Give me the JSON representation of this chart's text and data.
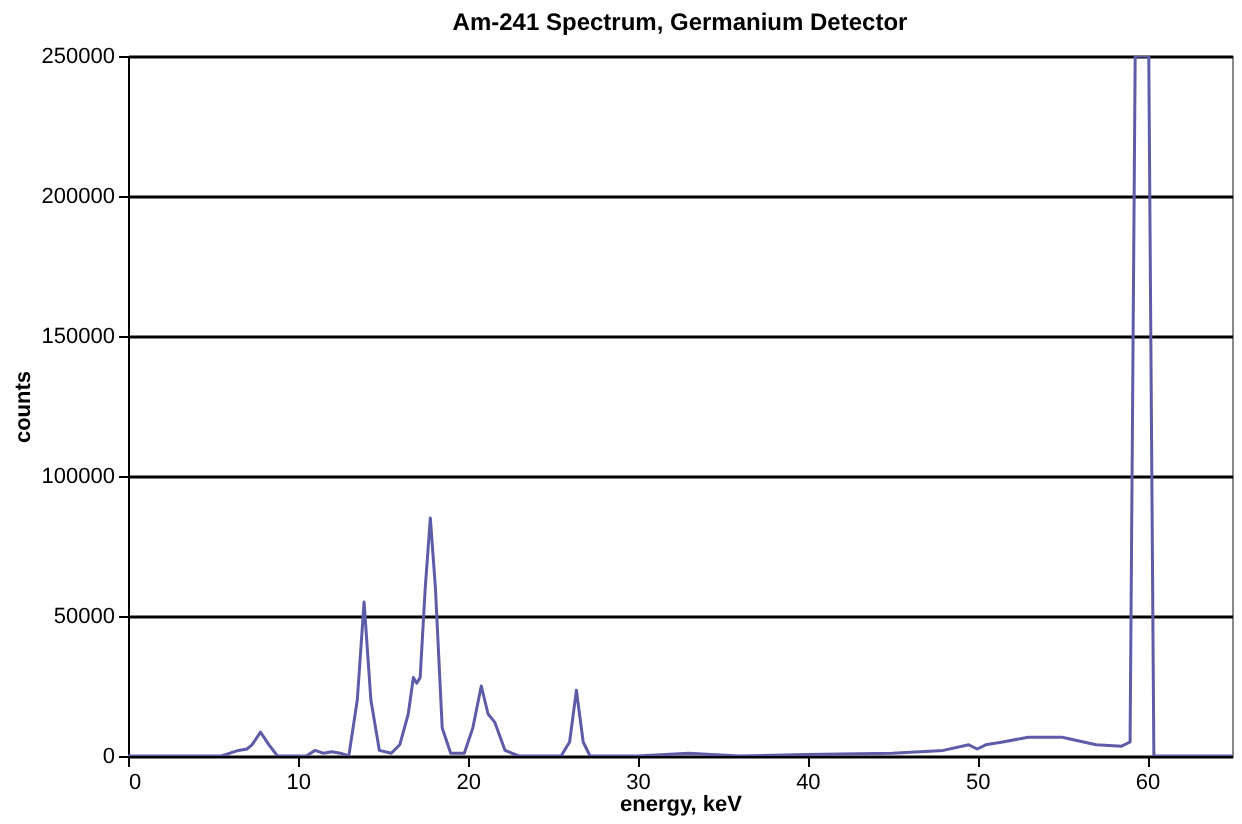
{
  "chart_data": {
    "type": "line",
    "title": "Am-241 Spectrum, Germanium Detector",
    "xlabel": "energy, keV",
    "ylabel": "counts",
    "x": [
      0,
      5.5,
      6.5,
      7.0,
      7.3,
      7.8,
      8.3,
      8.8,
      10.5,
      11.0,
      11.5,
      12.0,
      12.5,
      13.0,
      13.5,
      13.9,
      14.3,
      14.8,
      15.5,
      16.0,
      16.5,
      16.8,
      17.0,
      17.2,
      17.5,
      17.8,
      18.1,
      18.5,
      19.0,
      19.8,
      20.3,
      20.8,
      21.2,
      21.6,
      22.2,
      23.0,
      25.5,
      26.0,
      26.4,
      26.8,
      27.2,
      30,
      33,
      36,
      40,
      45,
      48,
      49.5,
      50,
      50.5,
      51.5,
      53,
      55,
      57,
      58.5,
      59.0,
      59.3,
      59.6,
      60.1,
      60.4,
      65
    ],
    "series": [
      {
        "color": "#5c5ca8",
        "values": [
          0,
          0,
          2000,
          2500,
          4000,
          8500,
          4000,
          0,
          0,
          2000,
          1000,
          1500,
          1000,
          0,
          20000,
          55000,
          20000,
          2000,
          1000,
          4000,
          15000,
          28000,
          26000,
          28000,
          60000,
          85000,
          60000,
          10000,
          1000,
          1000,
          10000,
          25000,
          15000,
          12000,
          2000,
          0,
          0,
          5000,
          23500,
          5000,
          0,
          0,
          1000,
          0,
          500,
          1000,
          2000,
          4000,
          2500,
          4000,
          5000,
          6700,
          6700,
          4000,
          3500,
          5000,
          250000,
          250000,
          250000,
          0,
          0
        ]
      }
    ],
    "xlim": [
      0,
      65
    ],
    "xticks": [
      0,
      10,
      20,
      30,
      40,
      50,
      60
    ],
    "ylim": [
      0,
      250000
    ],
    "yticks": [
      0,
      50000,
      100000,
      150000,
      200000,
      250000
    ],
    "grid": "y"
  }
}
